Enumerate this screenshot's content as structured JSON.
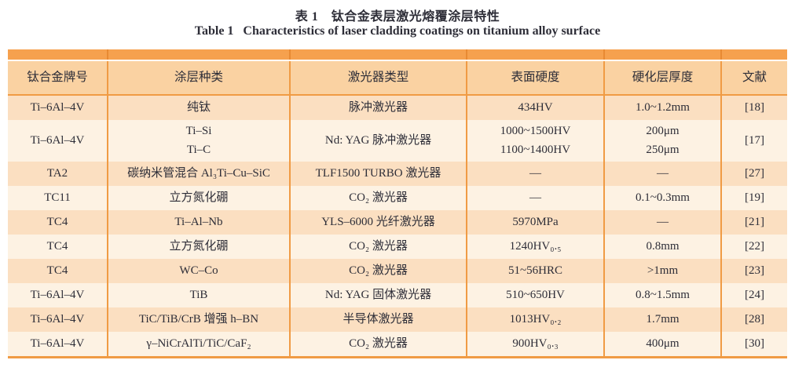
{
  "titles": {
    "zh": "表 1　钛合金表层激光熔覆涂层特性",
    "en": "Table 1   Characteristics of laser cladding coatings on titanium alloy surface"
  },
  "colors": {
    "top_bar": "#f6a14e",
    "top_bar_divider": "#e88a33",
    "header_bg": "#fad2a2",
    "row_peach": "#fbdfc1",
    "row_cream": "#fdf2e3",
    "divider": "#f09b44",
    "text": "#2e2e38"
  },
  "table": {
    "columns": [
      {
        "key": "alloy",
        "label": "钛合金牌号"
      },
      {
        "key": "coating",
        "label": "涂层种类"
      },
      {
        "key": "laser",
        "label": "激光器类型"
      },
      {
        "key": "hardness",
        "label": "表面硬度"
      },
      {
        "key": "thickness",
        "label": "硬化层厚度"
      },
      {
        "key": "ref",
        "label": "文献"
      }
    ],
    "rows": [
      {
        "alloy": "Ti–6Al–4V",
        "coating": "纯钛",
        "laser": "脉冲激光器",
        "hardness": "434HV",
        "thickness": "1.0~1.2mm",
        "ref": "[18]"
      },
      {
        "alloy": "Ti–6Al–4V",
        "coating": "Ti–Si\nTi–C",
        "laser": "Nd: YAG 脉冲激光器",
        "hardness": "1000~1500HV\n1100~1400HV",
        "thickness": "200μm\n250μm",
        "ref": "[17]"
      },
      {
        "alloy": "TA2",
        "coating": "碳纳米管混合 Al₃Ti–Cu–SiC",
        "laser": "TLF1500 TURBO 激光器",
        "hardness": "—",
        "thickness": "—",
        "ref": "[27]"
      },
      {
        "alloy": "TC11",
        "coating": "立方氮化硼",
        "laser": "CO₂ 激光器",
        "hardness": "—",
        "thickness": "0.1~0.3mm",
        "ref": "[19]"
      },
      {
        "alloy": "TC4",
        "coating": "Ti–Al–Nb",
        "laser": "YLS–6000 光纤激光器",
        "hardness": "5970MPa",
        "thickness": "—",
        "ref": "[21]"
      },
      {
        "alloy": "TC4",
        "coating": "立方氮化硼",
        "laser": "CO₂ 激光器",
        "hardness": "1240HV₀.₅",
        "thickness": "0.8mm",
        "ref": "[22]"
      },
      {
        "alloy": "TC4",
        "coating": "WC–Co",
        "laser": "CO₂ 激光器",
        "hardness": "51~56HRC",
        "thickness": ">1mm",
        "ref": "[23]"
      },
      {
        "alloy": "Ti–6Al–4V",
        "coating": "TiB",
        "laser": "Nd: YAG 固体激光器",
        "hardness": "510~650HV",
        "thickness": "0.8~1.5mm",
        "ref": "[24]"
      },
      {
        "alloy": "Ti–6Al–4V",
        "coating": "TiC/TiB/CrB 增强 h–BN",
        "laser": "半导体激光器",
        "hardness": "1013HV₀.₂",
        "thickness": "1.7mm",
        "ref": "[28]"
      },
      {
        "alloy": "Ti–6Al–4V",
        "coating": "γ–NiCrAlTi/TiC/CaF₂",
        "laser": "CO₂ 激光器",
        "hardness": "900HV₀.₃",
        "thickness": "400μm",
        "ref": "[30]"
      }
    ]
  }
}
